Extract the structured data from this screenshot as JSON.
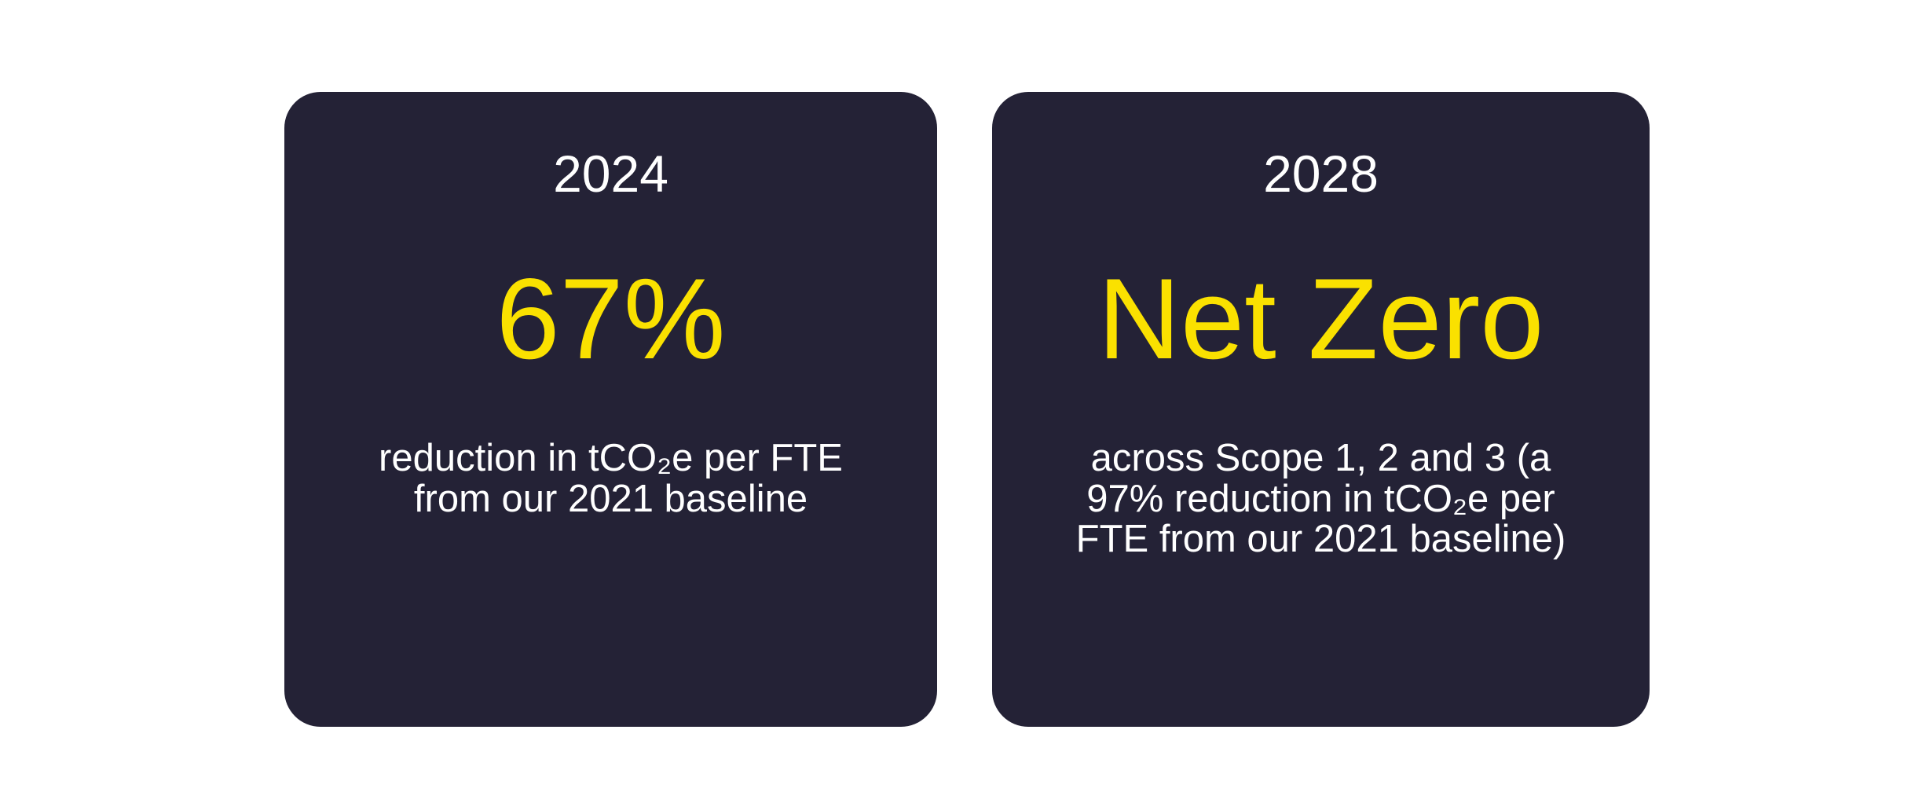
{
  "page": {
    "background": "#ffffff"
  },
  "colors": {
    "card_background": "#242236",
    "accent_yellow": "#FAE100",
    "text_white": "#ffffff"
  },
  "cards": [
    {
      "year": "2024",
      "headline": "67%",
      "body": "reduction in tCO₂e per FTE\nfrom our 2021 baseline"
    },
    {
      "year": "2028",
      "headline": "Net Zero",
      "body": "across Scope 1, 2 and 3 (a\n97% reduction in tCO₂e per\nFTE from our 2021 baseline)"
    }
  ]
}
